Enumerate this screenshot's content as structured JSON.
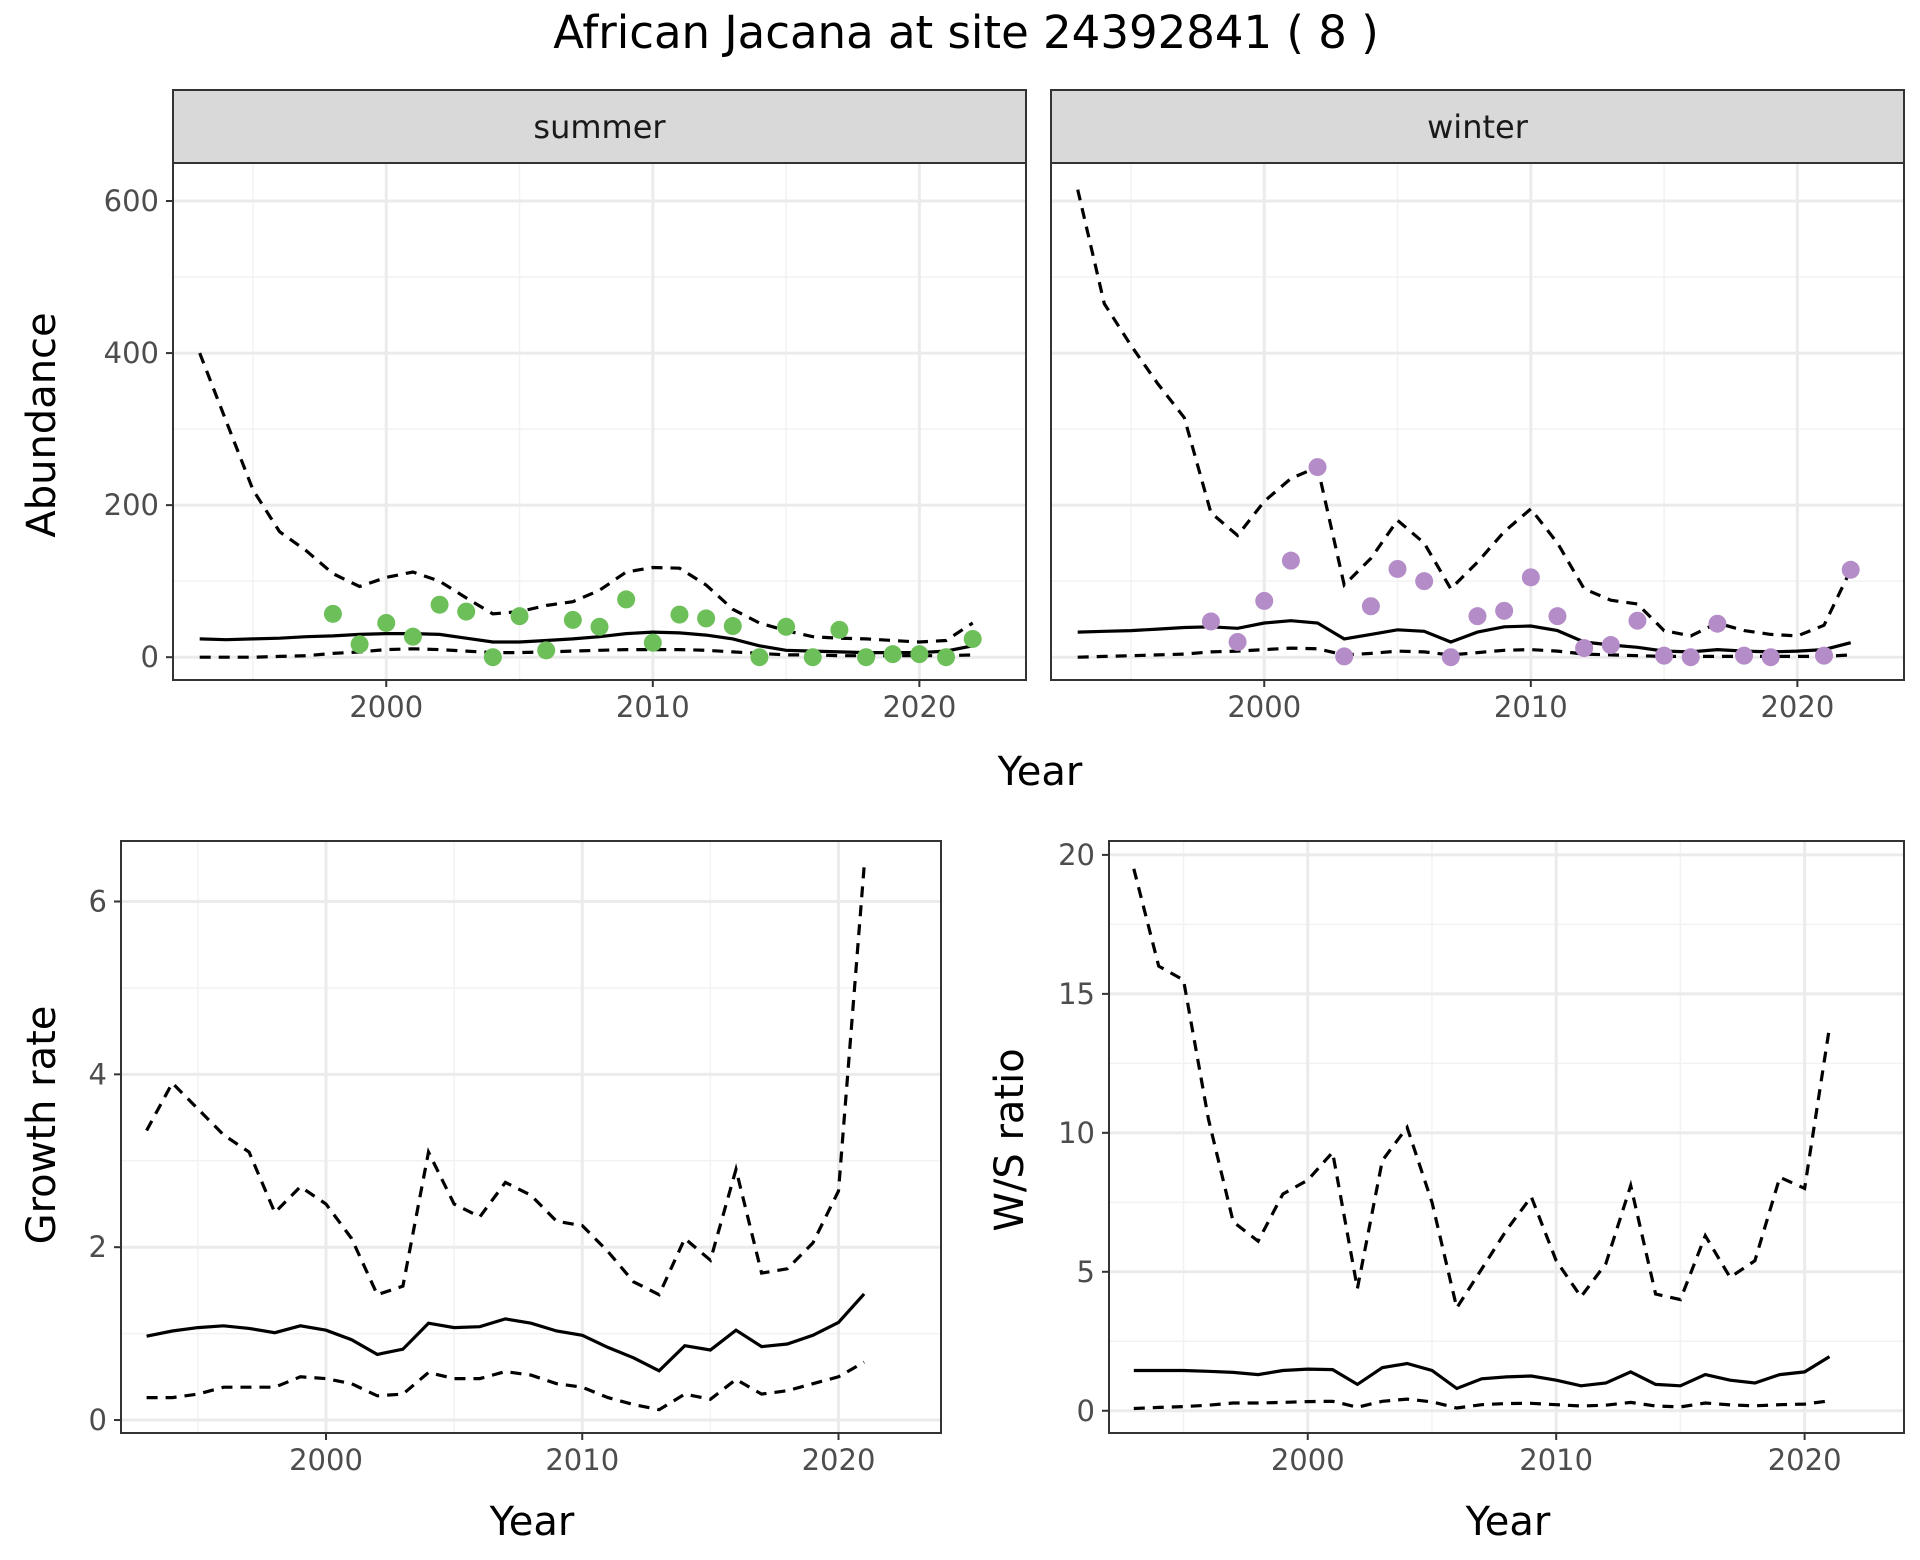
{
  "figure": {
    "title": "African Jacana at site 24392841 ( 8 )",
    "colors": {
      "summer": "#6dbf5a",
      "winter": "#b48cc8",
      "line": "#000000"
    }
  },
  "chart_data": [
    {
      "id": "abundance",
      "type": "line",
      "facets": [
        "summer",
        "winter"
      ],
      "xlabel": "Year",
      "ylabel": "Abundance",
      "xlim": [
        1992,
        2024
      ],
      "ylim": [
        -30,
        650
      ],
      "xticks": [
        2000,
        2010,
        2020
      ],
      "yticks": [
        0,
        200,
        400,
        600
      ],
      "panels": [
        {
          "name": "summer",
          "x": [
            1993,
            1994,
            1995,
            1996,
            1997,
            1998,
            1999,
            2000,
            2001,
            2002,
            2003,
            2004,
            2005,
            2006,
            2007,
            2008,
            2009,
            2010,
            2011,
            2012,
            2013,
            2014,
            2015,
            2016,
            2017,
            2018,
            2019,
            2020,
            2021,
            2022
          ],
          "mean": [
            24,
            23,
            24,
            25,
            27,
            28,
            30,
            31,
            31,
            30,
            25,
            20,
            20,
            22,
            24,
            27,
            31,
            33,
            32,
            29,
            24,
            15,
            9,
            8,
            7,
            6,
            6,
            6,
            8,
            15
          ],
          "upper": [
            400,
            310,
            220,
            165,
            140,
            110,
            93,
            105,
            112,
            100,
            78,
            57,
            60,
            68,
            73,
            88,
            112,
            118,
            117,
            95,
            63,
            45,
            35,
            27,
            25,
            24,
            22,
            20,
            22,
            45
          ],
          "lower": [
            0,
            0,
            0,
            1,
            2,
            5,
            7,
            10,
            11,
            10,
            8,
            6,
            6,
            7,
            8,
            9,
            10,
            10,
            10,
            9,
            7,
            5,
            3,
            3,
            2,
            2,
            2,
            2,
            2,
            3
          ],
          "observed_x": [
            1998,
            1999,
            2000,
            2001,
            2002,
            2003,
            2004,
            2005,
            2006,
            2007,
            2008,
            2009,
            2010,
            2011,
            2012,
            2013,
            2014,
            2015,
            2016,
            2017,
            2018,
            2019,
            2020,
            2021,
            2022
          ],
          "observed_y": [
            57,
            17,
            45,
            27,
            69,
            60,
            0,
            54,
            9,
            49,
            40,
            76,
            19,
            56,
            51,
            41,
            0,
            40,
            0,
            36,
            0,
            4,
            4,
            0,
            24
          ]
        },
        {
          "name": "winter",
          "x": [
            1993,
            1994,
            1995,
            1996,
            1997,
            1998,
            1999,
            2000,
            2001,
            2002,
            2003,
            2004,
            2005,
            2006,
            2007,
            2008,
            2009,
            2010,
            2011,
            2012,
            2013,
            2014,
            2015,
            2016,
            2017,
            2018,
            2019,
            2020,
            2021,
            2022
          ],
          "mean": [
            33,
            34,
            35,
            37,
            39,
            40,
            38,
            45,
            48,
            45,
            24,
            30,
            36,
            34,
            20,
            33,
            40,
            41,
            35,
            20,
            16,
            13,
            8,
            7,
            10,
            8,
            7,
            8,
            10,
            19
          ],
          "upper": [
            615,
            465,
            410,
            360,
            315,
            190,
            160,
            205,
            235,
            250,
            95,
            130,
            180,
            150,
            90,
            125,
            165,
            195,
            150,
            90,
            75,
            70,
            35,
            28,
            45,
            35,
            30,
            28,
            42,
            115
          ],
          "lower": [
            0,
            1,
            2,
            3,
            4,
            7,
            8,
            10,
            12,
            11,
            3,
            5,
            8,
            7,
            3,
            6,
            9,
            10,
            8,
            4,
            3,
            2,
            1,
            1,
            1,
            1,
            1,
            1,
            1,
            3
          ],
          "observed_x": [
            1998,
            1999,
            2000,
            2001,
            2002,
            2003,
            2004,
            2005,
            2006,
            2007,
            2008,
            2009,
            2010,
            2011,
            2012,
            2013,
            2014,
            2015,
            2016,
            2017,
            2018,
            2019,
            2021,
            2022
          ],
          "observed_y": [
            47,
            20,
            74,
            127,
            250,
            1,
            67,
            116,
            100,
            0,
            54,
            61,
            105,
            54,
            12,
            16,
            48,
            2,
            0,
            44,
            2,
            0,
            2,
            115
          ]
        }
      ]
    },
    {
      "id": "growth",
      "type": "line",
      "xlabel": "Year",
      "ylabel": "Growth rate",
      "xlim": [
        1992,
        2024
      ],
      "ylim": [
        -0.15,
        6.7
      ],
      "xticks": [
        2000,
        2010,
        2020
      ],
      "yticks": [
        0,
        2,
        4,
        6
      ],
      "x": [
        1993,
        1994,
        1995,
        1996,
        1997,
        1998,
        1999,
        2000,
        2001,
        2002,
        2003,
        2004,
        2005,
        2006,
        2007,
        2008,
        2009,
        2010,
        2011,
        2012,
        2013,
        2014,
        2015,
        2016,
        2017,
        2018,
        2019,
        2020,
        2021
      ],
      "mean": [
        0.97,
        1.03,
        1.07,
        1.09,
        1.06,
        1.01,
        1.09,
        1.04,
        0.93,
        0.76,
        0.82,
        1.12,
        1.07,
        1.08,
        1.17,
        1.12,
        1.03,
        0.98,
        0.84,
        0.72,
        0.57,
        0.86,
        0.81,
        1.04,
        0.85,
        0.88,
        0.98,
        1.13,
        1.46
      ],
      "upper": [
        3.35,
        3.9,
        3.6,
        3.3,
        3.1,
        2.4,
        2.7,
        2.5,
        2.1,
        1.45,
        1.55,
        3.1,
        2.5,
        2.35,
        2.75,
        2.6,
        2.3,
        2.25,
        1.95,
        1.6,
        1.45,
        2.1,
        1.85,
        2.9,
        1.7,
        1.75,
        2.05,
        2.65,
        6.4
      ],
      "lower": [
        0.26,
        0.26,
        0.3,
        0.38,
        0.38,
        0.38,
        0.5,
        0.48,
        0.42,
        0.28,
        0.3,
        0.55,
        0.48,
        0.48,
        0.56,
        0.52,
        0.42,
        0.38,
        0.26,
        0.18,
        0.12,
        0.3,
        0.24,
        0.47,
        0.3,
        0.34,
        0.42,
        0.5,
        0.67
      ]
    },
    {
      "id": "ratio",
      "type": "line",
      "xlabel": "Year",
      "ylabel": "W/S ratio",
      "xlim": [
        1992,
        2024
      ],
      "ylim": [
        -0.8,
        20.5
      ],
      "xticks": [
        2000,
        2010,
        2020
      ],
      "yticks": [
        0,
        5,
        10,
        15,
        20
      ],
      "x": [
        1993,
        1994,
        1995,
        1996,
        1997,
        1998,
        1999,
        2000,
        2001,
        2002,
        2003,
        2004,
        2005,
        2006,
        2007,
        2008,
        2009,
        2010,
        2011,
        2012,
        2013,
        2014,
        2015,
        2016,
        2017,
        2018,
        2019,
        2020,
        2021
      ],
      "mean": [
        1.45,
        1.45,
        1.45,
        1.42,
        1.38,
        1.3,
        1.45,
        1.5,
        1.48,
        0.95,
        1.55,
        1.7,
        1.45,
        0.8,
        1.15,
        1.22,
        1.25,
        1.1,
        0.9,
        1.0,
        1.4,
        0.95,
        0.9,
        1.3,
        1.1,
        1.0,
        1.3,
        1.4,
        1.95
      ],
      "upper": [
        19.5,
        16.0,
        15.5,
        10.5,
        6.8,
        6.1,
        7.8,
        8.3,
        9.3,
        4.4,
        9.0,
        10.2,
        7.5,
        3.7,
        5.1,
        6.5,
        7.7,
        5.4,
        4.1,
        5.3,
        8.1,
        4.2,
        4.0,
        6.3,
        4.8,
        5.4,
        8.4,
        8.0,
        13.8
      ],
      "lower": [
        0.08,
        0.12,
        0.15,
        0.2,
        0.28,
        0.28,
        0.3,
        0.33,
        0.34,
        0.13,
        0.34,
        0.42,
        0.32,
        0.1,
        0.22,
        0.26,
        0.27,
        0.22,
        0.17,
        0.2,
        0.3,
        0.17,
        0.14,
        0.28,
        0.21,
        0.18,
        0.22,
        0.24,
        0.36
      ]
    }
  ]
}
